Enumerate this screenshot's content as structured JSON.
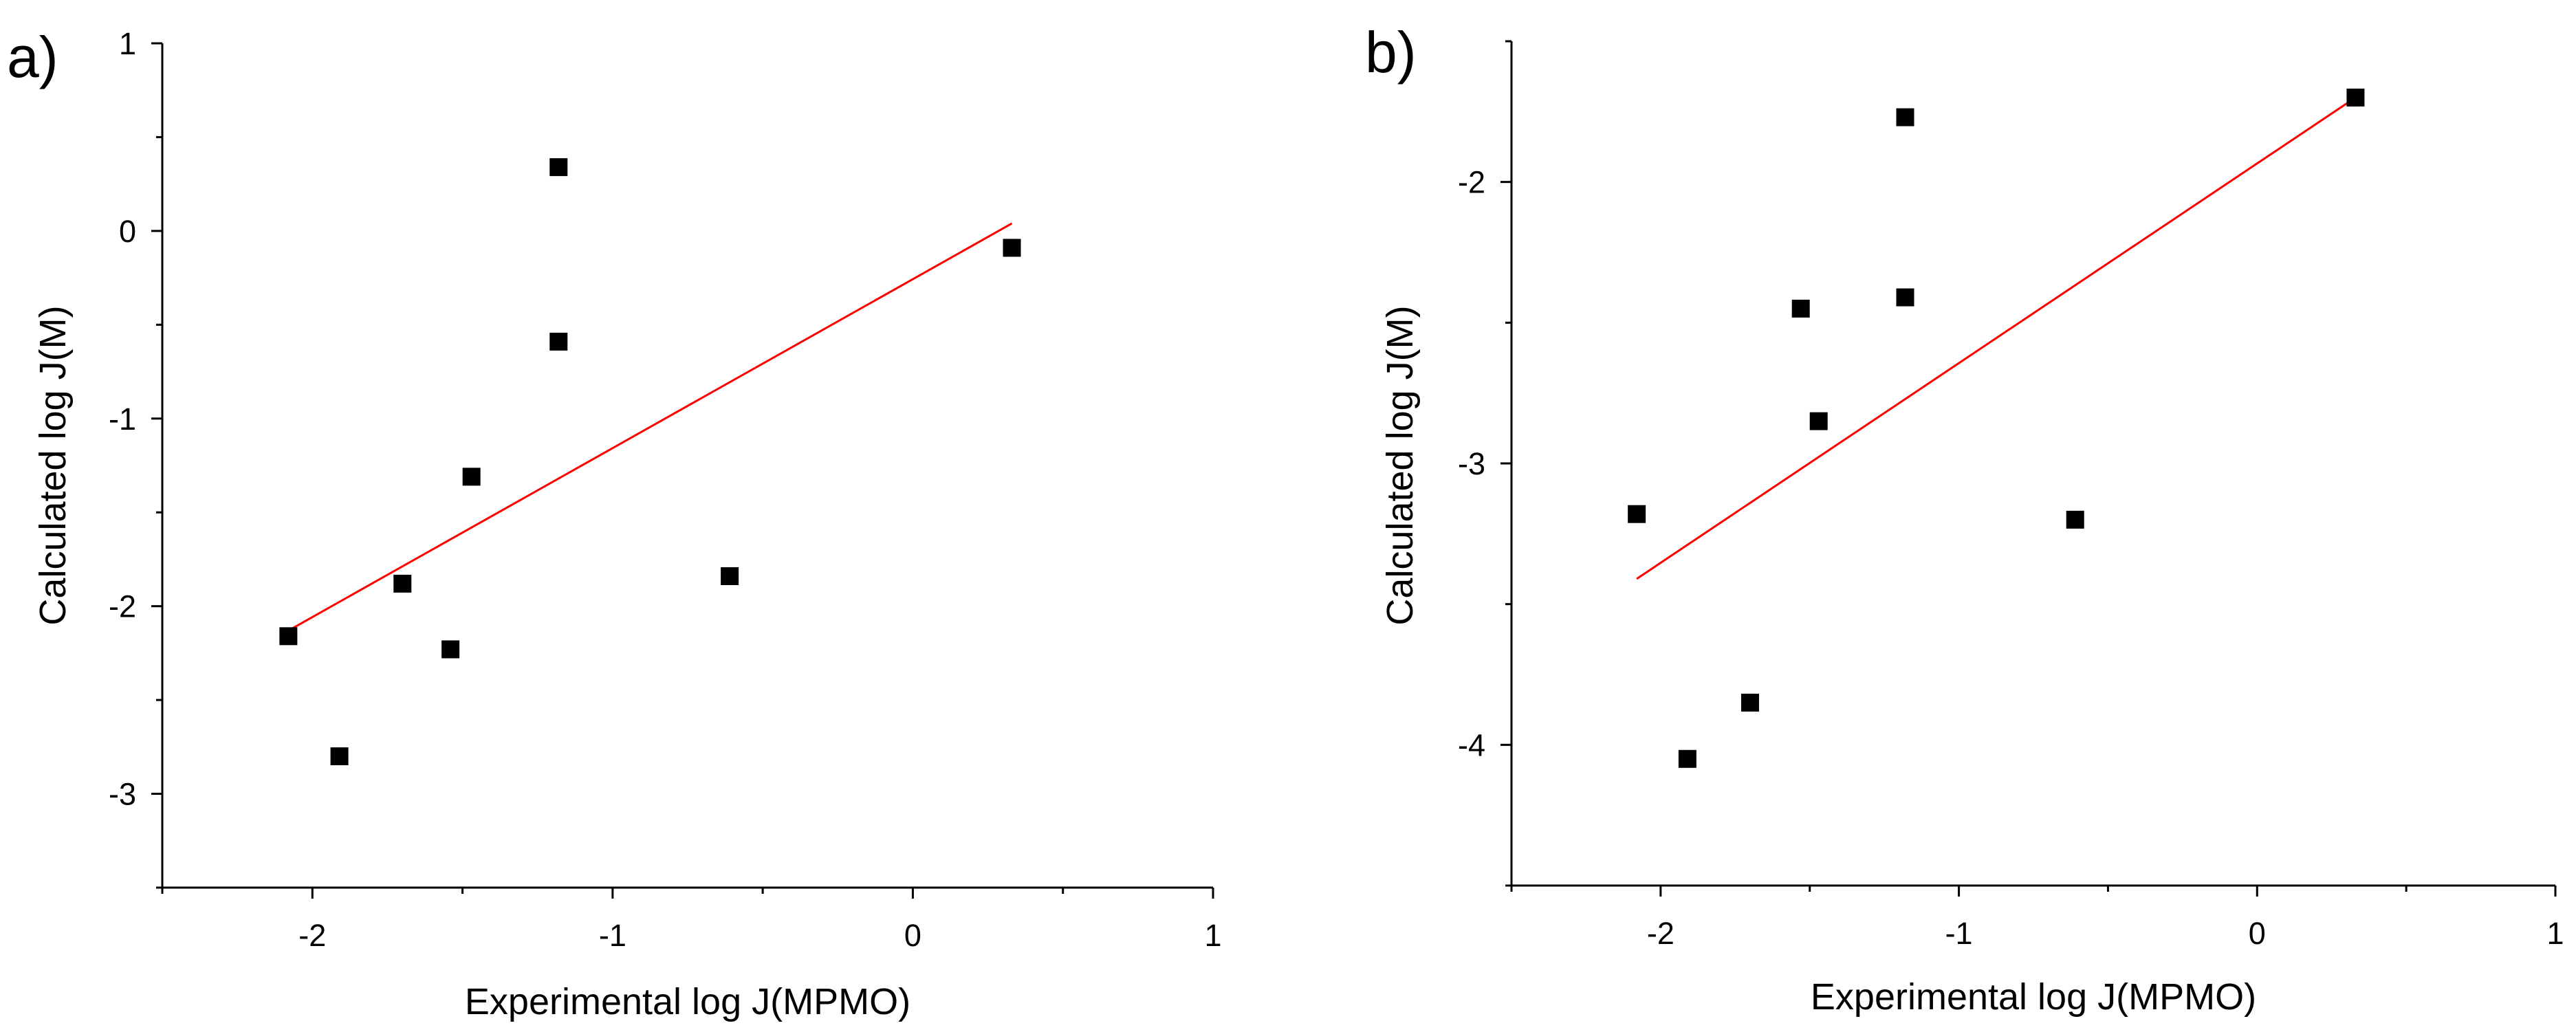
{
  "chart_data": [
    {
      "type": "scatter",
      "panel_label": "a)",
      "xlabel": "Experimental log J(MPMO)",
      "ylabel": "Calculated log J(M)",
      "xlim": [
        -2.5,
        1
      ],
      "ylim": [
        -3.5,
        1
      ],
      "xticks": [
        -2,
        -1,
        0,
        1
      ],
      "xtick_labels": [
        "-2",
        "-1",
        "0",
        "1"
      ],
      "yticks": [
        -3,
        -2,
        -1,
        0,
        1
      ],
      "ytick_labels": [
        "-3",
        "-2",
        "-1",
        "0",
        "1"
      ],
      "minor_xticks": [
        -2.5,
        -1.5,
        -0.5,
        0.5
      ],
      "minor_yticks": [
        -3.5,
        -2.5,
        -1.5,
        -0.5,
        0.5
      ],
      "grid": false,
      "series": [
        {
          "name": "data",
          "marker": "square",
          "color": "#000000",
          "x": [
            -2.08,
            -1.91,
            -1.7,
            -1.54,
            -1.47,
            -1.18,
            -1.18,
            -0.61,
            0.33
          ],
          "y": [
            -2.16,
            -2.8,
            -1.88,
            -2.23,
            -1.31,
            0.34,
            -0.59,
            -1.84,
            -0.09
          ]
        }
      ],
      "fit_line": {
        "color": "#ff0000",
        "x": [
          -2.08,
          0.33
        ],
        "y": [
          -2.13,
          0.04
        ]
      }
    },
    {
      "type": "scatter",
      "panel_label": "b)",
      "xlabel": "Experimental log J(MPMO)",
      "ylabel": "Calculated log J(M)",
      "xlim": [
        -2.5,
        1
      ],
      "ylim": [
        -4.5,
        -1.5
      ],
      "xticks": [
        -2,
        -1,
        0,
        1
      ],
      "xtick_labels": [
        "-2",
        "-1",
        "0",
        "1"
      ],
      "yticks": [
        -4,
        -3,
        -2
      ],
      "ytick_labels": [
        "-4",
        "-3",
        "-2"
      ],
      "minor_xticks": [
        -2.5,
        -1.5,
        -0.5,
        0.5
      ],
      "minor_yticks": [
        -4.5,
        -3.5,
        -2.5,
        -1.5
      ],
      "grid": false,
      "series": [
        {
          "name": "data",
          "marker": "square",
          "color": "#000000",
          "x": [
            -2.08,
            -1.91,
            -1.7,
            -1.53,
            -1.47,
            -1.18,
            -1.18,
            -0.61,
            0.33
          ],
          "y": [
            -3.18,
            -4.05,
            -3.85,
            -2.45,
            -2.85,
            -1.77,
            -2.41,
            -3.2,
            -1.7
          ]
        }
      ],
      "fit_line": {
        "color": "#ff0000",
        "x": [
          -2.08,
          0.33
        ],
        "y": [
          -3.41,
          -1.7
        ]
      }
    }
  ]
}
